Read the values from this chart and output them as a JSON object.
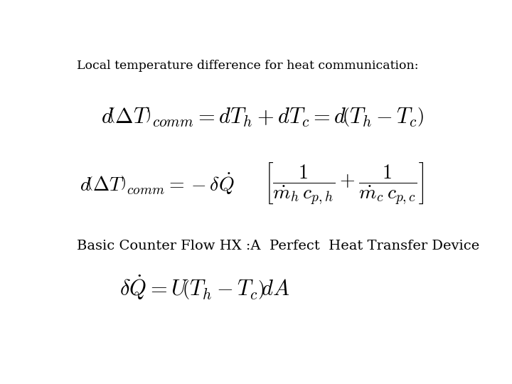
{
  "background_color": "#ffffff",
  "title_text": "Local temperature difference for heat communication:",
  "title_fontsize": 12.5,
  "subtitle_text": "Basic Counter Flow HX :A  Perfect  Heat Transfer Device",
  "subtitle_fontsize": 14
}
